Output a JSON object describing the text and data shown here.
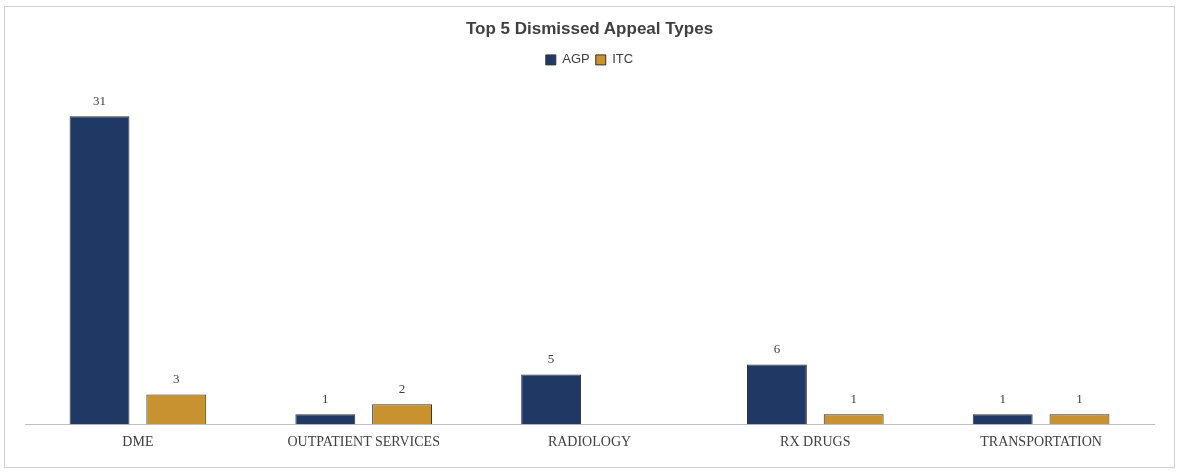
{
  "chart_data": {
    "type": "bar",
    "title": "Top 5 Dismissed Appeal Types",
    "categories": [
      "DME",
      "OUTPATIENT SERVICES",
      "RADIOLOGY",
      "RX DRUGS",
      "TRANSPORTATION"
    ],
    "series": [
      {
        "name": "AGP",
        "color": "#1f3864",
        "values": [
          31,
          1,
          5,
          6,
          1
        ]
      },
      {
        "name": "ITC",
        "color": "#c8922e",
        "values": [
          3,
          2,
          null,
          1,
          1
        ]
      }
    ],
    "data_labels": true,
    "grid": false,
    "legend": "top"
  }
}
